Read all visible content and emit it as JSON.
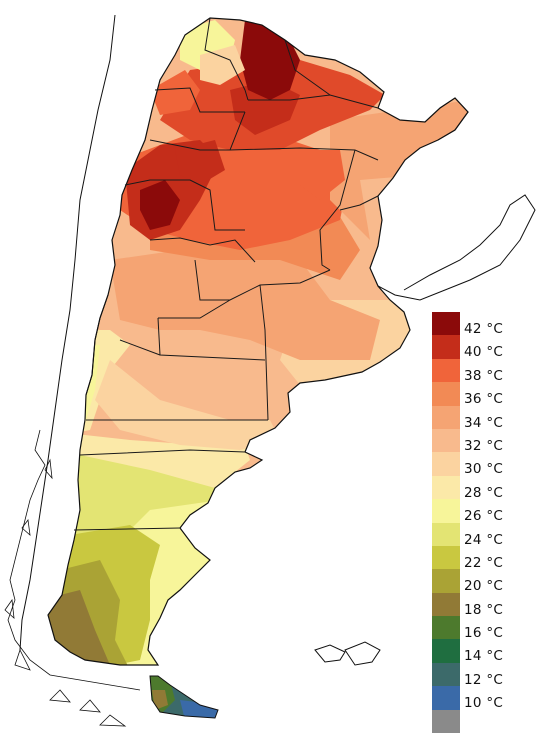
{
  "legend": {
    "items": [
      {
        "label": "42 °C",
        "color": "#8b0a0a"
      },
      {
        "label": "40 °C",
        "color": "#c42d1a"
      },
      {
        "label": "38 °C",
        "color": "#f0643a"
      },
      {
        "label": "36 °C",
        "color": "#f28a55"
      },
      {
        "label": "34 °C",
        "color": "#f5a473"
      },
      {
        "label": "32 °C",
        "color": "#f8ba8d"
      },
      {
        "label": "30 °C",
        "color": "#fbd3a0"
      },
      {
        "label": "28 °C",
        "color": "#fbe9a8"
      },
      {
        "label": "26 °C",
        "color": "#f7f59a"
      },
      {
        "label": "24 °C",
        "color": "#e3e473"
      },
      {
        "label": "22 °C",
        "color": "#c9c840"
      },
      {
        "label": "20 °C",
        "color": "#aaa335"
      },
      {
        "label": "18 °C",
        "color": "#917a36"
      },
      {
        "label": "16 °C",
        "color": "#4d7a2d"
      },
      {
        "label": "14 °C",
        "color": "#1f6e40"
      },
      {
        "label": "12 °C",
        "color": "#3c6a6a"
      },
      {
        "label": "10 °C",
        "color": "#3a6aa8"
      },
      {
        "label": "",
        "color": "#8a8a8a"
      }
    ]
  }
}
